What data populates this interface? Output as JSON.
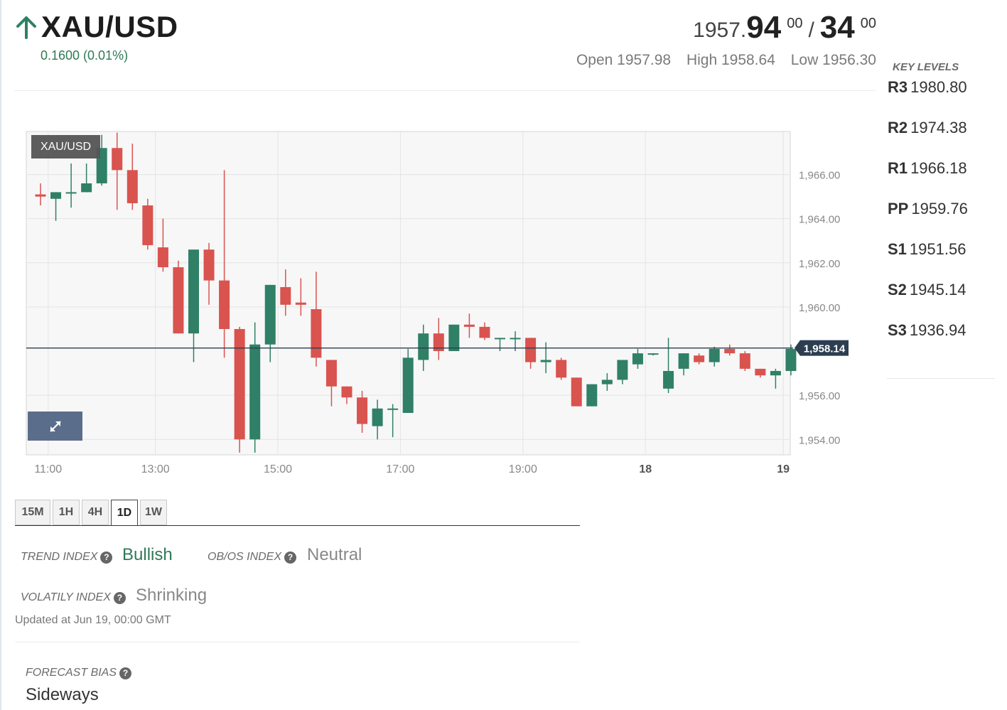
{
  "header": {
    "symbol": "XAU/USD",
    "change": "0.1600 (0.01%)",
    "bid_base": "1957.",
    "bid_big": "94",
    "bid_sup": "00",
    "separator": "/",
    "ask_big": "34",
    "ask_sup": "00",
    "open": "Open 1957.98",
    "high": "High 1958.64",
    "low": "Low 1956.30"
  },
  "key_levels": {
    "title": "KEY LEVELS",
    "items": [
      {
        "name": "R3",
        "value": "1980.80"
      },
      {
        "name": "R2",
        "value": "1974.38"
      },
      {
        "name": "R1",
        "value": "1966.18"
      },
      {
        "name": "PP",
        "value": "1959.76"
      },
      {
        "name": "S1",
        "value": "1951.56"
      },
      {
        "name": "S2",
        "value": "1945.14"
      },
      {
        "name": "S3",
        "value": "1936.94"
      }
    ]
  },
  "chart_data": {
    "type": "candlestick",
    "label": "XAU/USD",
    "current_price": 1958.14,
    "current_price_label": "1,958.14",
    "ylim": [
      1953.3,
      1967.95
    ],
    "y_ticks": [
      {
        "value": 1966,
        "label": "1,966.00"
      },
      {
        "value": 1964,
        "label": "1,964.00"
      },
      {
        "value": 1962,
        "label": "1,962.00"
      },
      {
        "value": 1960,
        "label": "1,960.00"
      },
      {
        "value": 1956,
        "label": "1,956.00"
      },
      {
        "value": 1954,
        "label": "1,954.00"
      }
    ],
    "x_ticks": [
      {
        "index": 0.5,
        "label": "11:00",
        "bold": false
      },
      {
        "index": 7.5,
        "label": "13:00",
        "bold": false
      },
      {
        "index": 15.5,
        "label": "15:00",
        "bold": false
      },
      {
        "index": 23.5,
        "label": "17:00",
        "bold": false
      },
      {
        "index": 31.5,
        "label": "19:00",
        "bold": false
      },
      {
        "index": 39.5,
        "label": "18",
        "bold": true
      },
      {
        "index": 48.5,
        "label": "19",
        "bold": true
      }
    ],
    "candles": [
      {
        "o": 1965.1,
        "h": 1965.6,
        "l": 1964.6,
        "c": 1965.0
      },
      {
        "o": 1964.9,
        "h": 1965.2,
        "l": 1963.9,
        "c": 1965.2
      },
      {
        "o": 1965.2,
        "h": 1966.5,
        "l": 1964.5,
        "c": 1965.2
      },
      {
        "o": 1965.2,
        "h": 1966.5,
        "l": 1965.2,
        "c": 1965.6
      },
      {
        "o": 1965.6,
        "h": 1967.8,
        "l": 1965.5,
        "c": 1967.2
      },
      {
        "o": 1967.2,
        "h": 1967.9,
        "l": 1964.4,
        "c": 1966.2
      },
      {
        "o": 1966.2,
        "h": 1967.4,
        "l": 1964.4,
        "c": 1964.7
      },
      {
        "o": 1964.6,
        "h": 1964.9,
        "l": 1962.6,
        "c": 1962.8
      },
      {
        "o": 1962.7,
        "h": 1964.0,
        "l": 1961.6,
        "c": 1961.8
      },
      {
        "o": 1961.8,
        "h": 1962.1,
        "l": 1958.8,
        "c": 1958.8
      },
      {
        "o": 1958.8,
        "h": 1962.6,
        "l": 1957.5,
        "c": 1962.6
      },
      {
        "o": 1962.6,
        "h": 1962.9,
        "l": 1960.1,
        "c": 1961.2
      },
      {
        "o": 1961.2,
        "h": 1966.2,
        "l": 1957.7,
        "c": 1959.0
      },
      {
        "o": 1959.0,
        "h": 1959.1,
        "l": 1953.4,
        "c": 1954.0
      },
      {
        "o": 1954.0,
        "h": 1959.3,
        "l": 1953.4,
        "c": 1958.3
      },
      {
        "o": 1958.3,
        "h": 1961.0,
        "l": 1957.5,
        "c": 1961.0
      },
      {
        "o": 1960.9,
        "h": 1961.7,
        "l": 1959.6,
        "c": 1960.1
      },
      {
        "o": 1960.2,
        "h": 1961.3,
        "l": 1959.6,
        "c": 1960.1
      },
      {
        "o": 1959.9,
        "h": 1961.6,
        "l": 1957.3,
        "c": 1957.7
      },
      {
        "o": 1957.6,
        "h": 1957.6,
        "l": 1955.5,
        "c": 1956.4
      },
      {
        "o": 1956.4,
        "h": 1956.4,
        "l": 1955.6,
        "c": 1955.9
      },
      {
        "o": 1955.9,
        "h": 1956.2,
        "l": 1954.3,
        "c": 1954.7
      },
      {
        "o": 1954.6,
        "h": 1955.8,
        "l": 1954.0,
        "c": 1955.4
      },
      {
        "o": 1955.4,
        "h": 1955.6,
        "l": 1954.1,
        "c": 1955.4
      },
      {
        "o": 1955.2,
        "h": 1958.1,
        "l": 1955.2,
        "c": 1957.7
      },
      {
        "o": 1957.6,
        "h": 1959.2,
        "l": 1957.1,
        "c": 1958.8
      },
      {
        "o": 1958.8,
        "h": 1959.5,
        "l": 1957.6,
        "c": 1958.0
      },
      {
        "o": 1958.0,
        "h": 1959.2,
        "l": 1958.0,
        "c": 1959.2
      },
      {
        "o": 1959.2,
        "h": 1959.7,
        "l": 1958.6,
        "c": 1959.1
      },
      {
        "o": 1959.1,
        "h": 1959.3,
        "l": 1958.5,
        "c": 1958.6
      },
      {
        "o": 1958.6,
        "h": 1958.6,
        "l": 1958.0,
        "c": 1958.6
      },
      {
        "o": 1958.6,
        "h": 1958.9,
        "l": 1958.0,
        "c": 1958.6
      },
      {
        "o": 1958.6,
        "h": 1958.6,
        "l": 1957.2,
        "c": 1957.5
      },
      {
        "o": 1957.5,
        "h": 1958.4,
        "l": 1957.0,
        "c": 1957.6
      },
      {
        "o": 1957.6,
        "h": 1957.7,
        "l": 1956.7,
        "c": 1956.8
      },
      {
        "o": 1956.8,
        "h": 1956.8,
        "l": 1955.5,
        "c": 1955.5
      },
      {
        "o": 1955.5,
        "h": 1956.5,
        "l": 1955.5,
        "c": 1956.5
      },
      {
        "o": 1956.5,
        "h": 1957.0,
        "l": 1956.2,
        "c": 1956.7
      },
      {
        "o": 1956.7,
        "h": 1957.6,
        "l": 1956.5,
        "c": 1957.6
      },
      {
        "o": 1957.4,
        "h": 1958.1,
        "l": 1957.2,
        "c": 1957.9
      },
      {
        "o": 1957.9,
        "h": 1957.9,
        "l": 1957.8,
        "c": 1957.9
      },
      {
        "o": 1956.3,
        "h": 1958.6,
        "l": 1956.1,
        "c": 1957.1
      },
      {
        "o": 1957.2,
        "h": 1957.9,
        "l": 1956.9,
        "c": 1957.9
      },
      {
        "o": 1957.8,
        "h": 1957.9,
        "l": 1957.4,
        "c": 1957.5
      },
      {
        "o": 1957.5,
        "h": 1958.2,
        "l": 1957.3,
        "c": 1958.1
      },
      {
        "o": 1958.1,
        "h": 1958.3,
        "l": 1957.8,
        "c": 1957.9
      },
      {
        "o": 1957.9,
        "h": 1958.0,
        "l": 1957.1,
        "c": 1957.2
      },
      {
        "o": 1957.2,
        "h": 1957.2,
        "l": 1956.8,
        "c": 1956.9
      },
      {
        "o": 1956.9,
        "h": 1957.2,
        "l": 1956.3,
        "c": 1957.1
      },
      {
        "o": 1957.1,
        "h": 1958.3,
        "l": 1956.9,
        "c": 1958.1
      }
    ],
    "colors": {
      "up": "#2f8066",
      "down": "#d9534f",
      "price_line": "#2c3e50",
      "price_label_bg": "#2c3e50",
      "grid": "#e4e4e4",
      "background": "#f7f7f7"
    }
  },
  "timeframes": {
    "items": [
      {
        "label": "15M",
        "active": false
      },
      {
        "label": "1H",
        "active": false
      },
      {
        "label": "4H",
        "active": false
      },
      {
        "label": "1D",
        "active": true
      },
      {
        "label": "1W",
        "active": false
      }
    ]
  },
  "indices": {
    "trend_label": "TREND INDEX",
    "trend_value": "Bullish",
    "obos_label": "OB/OS INDEX",
    "obos_value": "Neutral",
    "volatility_label": "VOLATILY INDEX",
    "volatility_value": "Shrinking",
    "updated": "Updated at Jun 19, 00:00 GMT",
    "forecast_label": "FORECAST BIAS",
    "forecast_value": "Sideways",
    "help_glyph": "?"
  },
  "colors": {
    "bullish": "#2f7a56",
    "neutral": "#888888",
    "accent_green": "#2f8066"
  }
}
